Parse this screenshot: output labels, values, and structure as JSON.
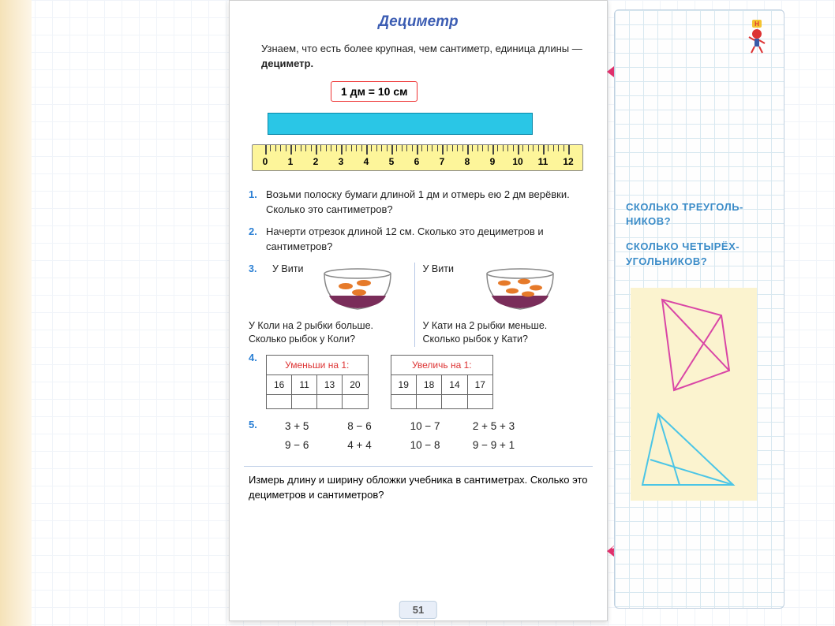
{
  "title": "Дециметр",
  "intro": {
    "text": "Узнаем, что есть более крупная, чем сантиметр, единица длины — ",
    "bold": "дециметр."
  },
  "formula": "1 дм = 10 см",
  "ruler": {
    "ticks": [
      0,
      1,
      2,
      3,
      4,
      5,
      6,
      7,
      8,
      9,
      10,
      11,
      12
    ]
  },
  "p1": {
    "n": "1.",
    "text": "Возьми полоску бумаги длиной 1 дм и отмерь ею 2 дм верёвки. Сколько это сантиметров?"
  },
  "p2": {
    "n": "2.",
    "text": "Начерти отрезок длиной 12 см. Сколько это дециметров и сантиметров?"
  },
  "p3": {
    "n": "3.",
    "left": {
      "head": "У Вити",
      "body": "У Коли на 2 рыбки больше. Сколько рыбок у Коли?"
    },
    "right": {
      "head": "У Вити",
      "body": "У Кати на 2 рыбки меньше. Сколько рыбок у Кати?"
    }
  },
  "p4": {
    "n": "4.",
    "t1": {
      "head": "Уменьши на 1:",
      "row": [
        "16",
        "11",
        "13",
        "20"
      ]
    },
    "t2": {
      "head": "Увеличь на 1:",
      "row": [
        "19",
        "18",
        "14",
        "17"
      ]
    }
  },
  "p5": {
    "n": "5.",
    "items": [
      "3 + 5",
      "8 − 6",
      "10 − 7",
      "2 + 5 + 3",
      "9 − 6",
      "4 + 4",
      "10 − 8",
      "9 − 9 + 1"
    ]
  },
  "bottom": "Измерь длину и ширину обложки учебника в сантиметрах. Сколько это дециметров и сантиметров?",
  "pageNumber": "51",
  "sidebar": {
    "q1": "СКОЛЬКО ТРЕУГОЛЬ-НИКОВ?",
    "q2": "СКОЛЬКО ЧЕТЫРЁХ-УГОЛЬНИКОВ?"
  },
  "colors": {
    "blueStrip": "#2ac6e6",
    "ruler": "#fdf59a",
    "titleColor": "#3c5db3",
    "problemNum": "#2a7fd4",
    "red": "#e0316c",
    "sidebarText": "#3b8cc8",
    "shapePink": "#d946a6",
    "shapeBlue": "#4bc5e6",
    "stickyBg": "#fbf3cf"
  }
}
